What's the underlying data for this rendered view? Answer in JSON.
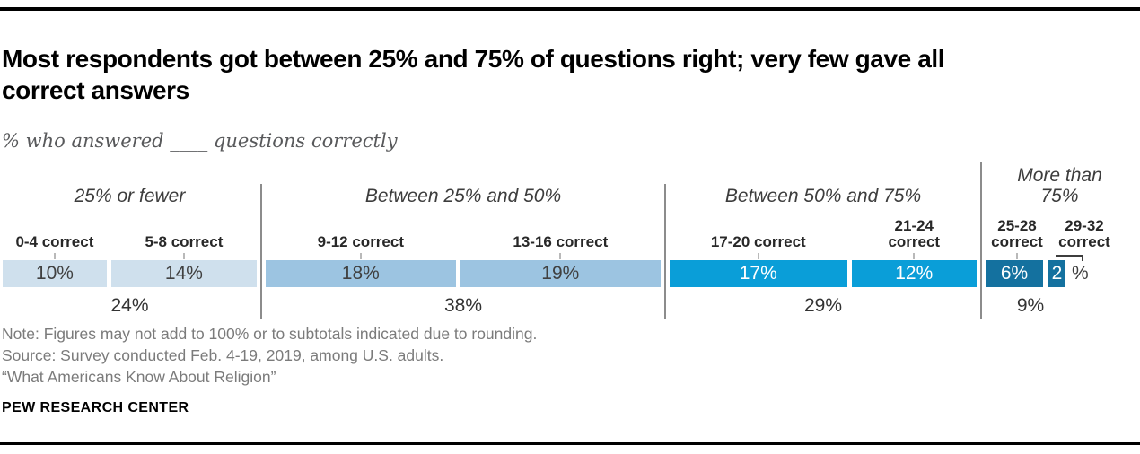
{
  "header": {
    "title_line1": "Most respondents got between 25% and 75% of questions right; very few gave all",
    "title_line2": "correct answers",
    "subtitle": "% who answered ____ questions correctly"
  },
  "chart_data": {
    "type": "bar",
    "layout": "horizontal proportional segmented bar, segments sized by percent value, grouped into 4 score ranges with gray divider lines between groups",
    "title": "Most respondents got between 25% and 75% of questions right; very few gave all correct answers",
    "subtitle": "% who answered ____ questions correctly",
    "divider_color": "#8c8c8c",
    "tick_color": "#b9b9b9",
    "groups": [
      {
        "label": "25% or fewer",
        "subtotal": "24%",
        "color": "#cfe0ed",
        "value_color": "#404040",
        "bars": [
          {
            "label": "0-4 correct",
            "value": 10,
            "display": "10%"
          },
          {
            "label": "5-8 correct",
            "value": 14,
            "display": "14%"
          }
        ]
      },
      {
        "label": "Between 25% and 50%",
        "subtotal": "38%",
        "color": "#9cc4e1",
        "value_color": "#404040",
        "bars": [
          {
            "label": "9-12 correct",
            "value": 18,
            "display": "18%"
          },
          {
            "label": "13-16 correct",
            "value": 19,
            "display": "19%"
          }
        ]
      },
      {
        "label": "Between 50% and 75%",
        "subtotal": "29%",
        "color": "#0a9ed8",
        "value_color": "#ffffff",
        "bars": [
          {
            "label": "17-20 correct",
            "value": 17,
            "display": "17%"
          },
          {
            "label": "21-24\ncorrect",
            "value": 12,
            "display": "12%"
          }
        ]
      },
      {
        "label": "More than\n75%",
        "subtotal": "9%",
        "color": "#14719f",
        "value_color": "#ffffff",
        "outside_suffix": "%",
        "bars": [
          {
            "label": "25-28\ncorrect",
            "value": 6,
            "display": "6%"
          },
          {
            "label": "29-32\ncorrect",
            "value": 2,
            "display": "2",
            "connector": true
          }
        ]
      }
    ]
  },
  "notes": {
    "note": "Note: Figures may not add to 100% or to subtotals indicated due to rounding.",
    "source": "Source: Survey conducted Feb. 4-19, 2019, among U.S. adults.",
    "report": "“What Americans Know About Religion”"
  },
  "footer": {
    "brand": "PEW RESEARCH CENTER"
  }
}
